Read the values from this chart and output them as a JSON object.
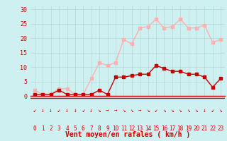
{
  "hours": [
    0,
    1,
    2,
    3,
    4,
    5,
    6,
    7,
    8,
    9,
    10,
    11,
    12,
    13,
    14,
    15,
    16,
    17,
    18,
    19,
    20,
    21,
    22,
    23
  ],
  "wind_avg": [
    0.5,
    0.5,
    0.5,
    2.0,
    0.5,
    0.5,
    0.5,
    0.5,
    2.0,
    0.5,
    6.5,
    6.5,
    7.0,
    7.5,
    7.5,
    10.5,
    9.5,
    8.5,
    8.5,
    7.5,
    7.5,
    6.5,
    3.0,
    6.0
  ],
  "wind_gust": [
    2.0,
    0.5,
    0.5,
    2.5,
    2.5,
    0.5,
    0.5,
    6.0,
    11.5,
    10.5,
    11.5,
    19.5,
    18.0,
    23.5,
    24.0,
    26.5,
    23.5,
    24.0,
    26.5,
    23.5,
    23.5,
    24.5,
    18.5,
    19.5
  ],
  "arrow_chars": [
    "↙",
    "↓",
    "↓",
    "↙",
    "↓",
    "↓",
    "↙",
    "↓",
    "↘",
    "→",
    "→",
    "↘",
    "↘",
    "→",
    "↘",
    "↙",
    "↘",
    "↘",
    "↘",
    "↘",
    "↘",
    "↓",
    "↙",
    "↘"
  ],
  "xlabel": "Vent moyen/en rafales ( km/h )",
  "ylim": [
    0,
    31
  ],
  "yticks": [
    0,
    5,
    10,
    15,
    20,
    25,
    30
  ],
  "bg_color": "#cff0f0",
  "grid_color": "#b0d8d8",
  "avg_color": "#cc0000",
  "gust_color": "#ffb0b0",
  "marker_size": 2.5,
  "line_width": 1.0
}
